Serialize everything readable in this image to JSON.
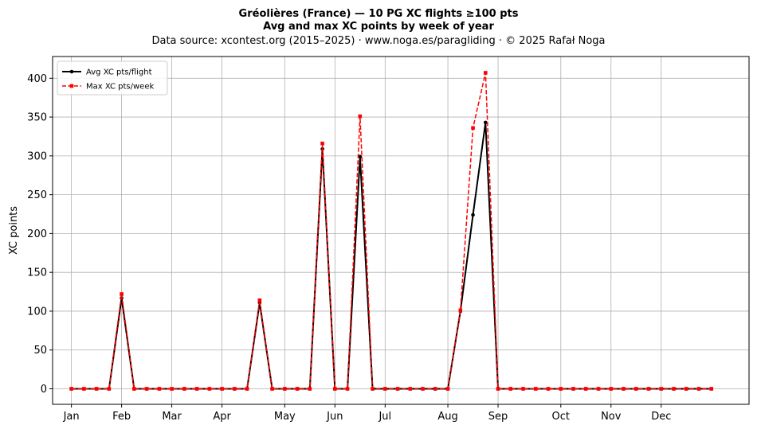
{
  "chart_data": {
    "type": "line",
    "title": "Gréolières (France)  —  10 PG XC flights ≥100 pts",
    "subtitle": "Avg and max XC points by week of year",
    "source_line": "Data source: xcontest.org (2015–2025)  ·  www.noga.es/paragliding  ·  © 2025 Rafał Noga",
    "xlabel": "",
    "ylabel": "XC points",
    "xlim": [
      -1.5,
      54
    ],
    "ylim": [
      -20,
      428
    ],
    "y_ticks": [
      0,
      50,
      100,
      150,
      200,
      250,
      300,
      350,
      400
    ],
    "month_ticks": [
      {
        "label": "Jan",
        "week": 0
      },
      {
        "label": "Feb",
        "week": 4
      },
      {
        "label": "Mar",
        "week": 8
      },
      {
        "label": "Apr",
        "week": 12
      },
      {
        "label": "May",
        "week": 17
      },
      {
        "label": "Jun",
        "week": 21
      },
      {
        "label": "Jul",
        "week": 25
      },
      {
        "label": "Aug",
        "week": 30
      },
      {
        "label": "Sep",
        "week": 34
      },
      {
        "label": "Oct",
        "week": 39
      },
      {
        "label": "Nov",
        "week": 43
      },
      {
        "label": "Dec",
        "week": 47
      }
    ],
    "grid": true,
    "legend_position": "top-left",
    "x": [
      0,
      1,
      2,
      3,
      4,
      5,
      6,
      7,
      8,
      9,
      10,
      11,
      12,
      13,
      14,
      15,
      16,
      17,
      18,
      19,
      20,
      21,
      22,
      23,
      24,
      25,
      26,
      27,
      28,
      29,
      30,
      31,
      32,
      33,
      34,
      35,
      36,
      37,
      38,
      39,
      40,
      41,
      42,
      43,
      44,
      45,
      46,
      47,
      48,
      49,
      50,
      51
    ],
    "series": [
      {
        "name": "Avg XC pts/flight",
        "color": "#000000",
        "style": "solid",
        "marker": "circle",
        "values": [
          0,
          0,
          0,
          0,
          117,
          0,
          0,
          0,
          0,
          0,
          0,
          0,
          0,
          0,
          0,
          111,
          0,
          0,
          0,
          0,
          309,
          0,
          0,
          299,
          0,
          0,
          0,
          0,
          0,
          0,
          0,
          100,
          224,
          343,
          0,
          0,
          0,
          0,
          0,
          0,
          0,
          0,
          0,
          0,
          0,
          0,
          0,
          0,
          0,
          0,
          0,
          0
        ]
      },
      {
        "name": "Max XC pts/week",
        "color": "#ff0000",
        "style": "dashed",
        "marker": "square",
        "values": [
          0,
          0,
          0,
          0,
          122,
          0,
          0,
          0,
          0,
          0,
          0,
          0,
          0,
          0,
          0,
          114,
          0,
          0,
          0,
          0,
          316,
          0,
          0,
          351,
          0,
          0,
          0,
          0,
          0,
          0,
          0,
          101,
          336,
          407,
          0,
          0,
          0,
          0,
          0,
          0,
          0,
          0,
          0,
          0,
          0,
          0,
          0,
          0,
          0,
          0,
          0,
          0
        ]
      }
    ]
  }
}
